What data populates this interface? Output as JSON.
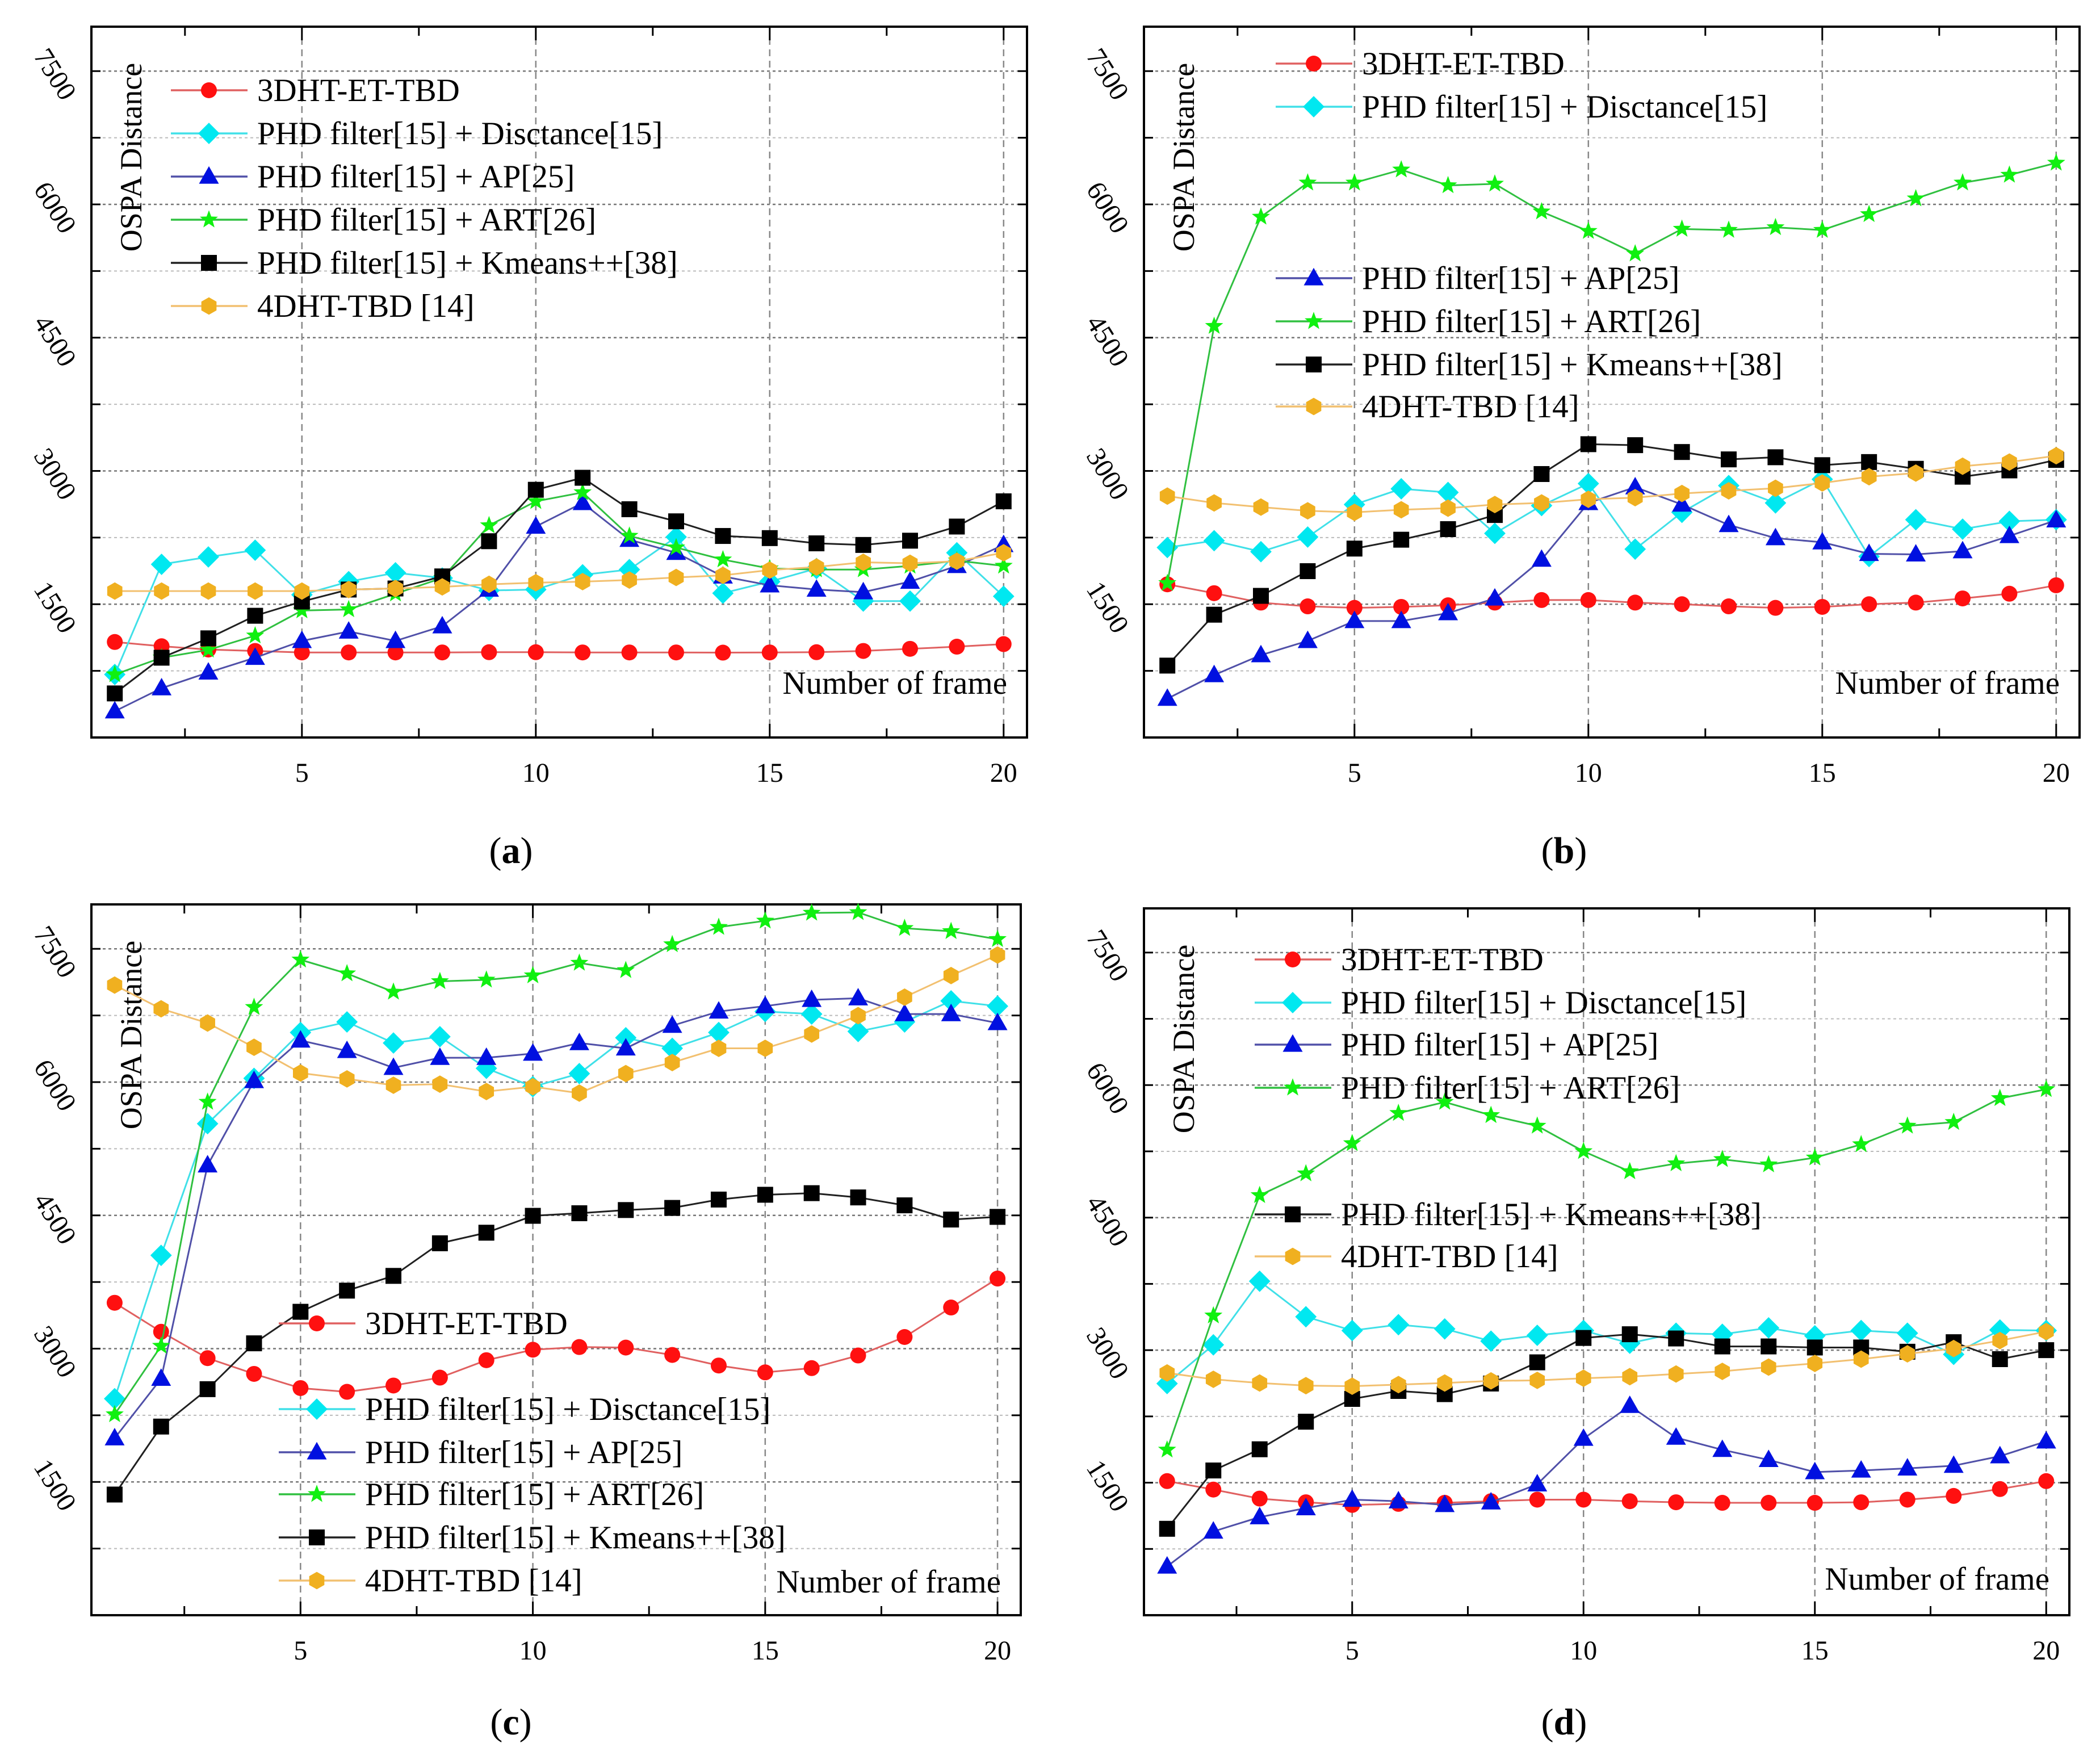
{
  "styles": {
    "3DHT-ET-TBD": {
      "marker": "circle",
      "fill": "#ff1010",
      "line": "#e06060"
    },
    "Disctance": {
      "marker": "diamond",
      "fill": "#00e8f0",
      "line": "#40e0e8"
    },
    "AP": {
      "marker": "triangle",
      "fill": "#0010e0",
      "line": "#5050a8"
    },
    "ART": {
      "marker": "star",
      "fill": "#10f010",
      "line": "#30c040"
    },
    "Kmeans": {
      "marker": "square",
      "fill": "#000000",
      "line": "#202020"
    },
    "4DHT": {
      "marker": "hexagon",
      "fill": "#f0b020",
      "line": "#f2c070"
    }
  },
  "chart_data": [
    {
      "type": "line",
      "caption": "(a)",
      "xlabel": "Number of frame",
      "ylabel": "OSPA Distance",
      "xlim": [
        0.5,
        20.5
      ],
      "ylim": [
        0,
        8000
      ],
      "xticks": [
        5,
        10,
        15,
        20
      ],
      "yticks": [
        1500,
        3000,
        4500,
        6000,
        7500
      ],
      "grid": true,
      "x": [
        1,
        2,
        3,
        4,
        5,
        6,
        7,
        8,
        9,
        10,
        11,
        12,
        13,
        14,
        15,
        16,
        17,
        18,
        19,
        20
      ],
      "legend_layout": "upper",
      "series": [
        {
          "key": "3DHT-ET-TBD",
          "name": "3DHT-ET-TBD",
          "values": [
            1075,
            1027,
            990,
            974,
            957,
            957,
            957,
            957,
            960,
            960,
            957,
            957,
            957,
            955,
            957,
            960,
            974,
            998,
            1022,
            1051
          ]
        },
        {
          "key": "Disctance",
          "name": "PHD filter[15] + Disctance[15]",
          "values": [
            709,
            1949,
            2032,
            2108,
            1606,
            1754,
            1854,
            1795,
            1654,
            1665,
            1831,
            1890,
            2256,
            1624,
            1754,
            1902,
            1535,
            1535,
            2079,
            1589
          ]
        },
        {
          "key": "AP",
          "name": "PHD filter[15] + AP[25]",
          "values": [
            295,
            555,
            732,
            898,
            1087,
            1193,
            1087,
            1252,
            1665,
            2374,
            2640,
            2226,
            2079,
            1813,
            1713,
            1665,
            1636,
            1754,
            1931,
            2167
          ]
        },
        {
          "key": "ART",
          "name": "PHD filter[15] + ART[26]",
          "values": [
            709,
            898,
            986,
            1146,
            1429,
            1441,
            1618,
            1795,
            2386,
            2658,
            2758,
            2268,
            2138,
            2002,
            1902,
            1890,
            1890,
            1931,
            1990,
            1931
          ]
        },
        {
          "key": "Kmeans",
          "name": "PHD filter[15] + Kmeans++[38]",
          "values": [
            496,
            898,
            1116,
            1370,
            1530,
            1665,
            1677,
            1813,
            2209,
            2788,
            2923,
            2569,
            2433,
            2268,
            2244,
            2185,
            2167,
            2215,
            2374,
            2658
          ]
        },
        {
          "key": "4DHT",
          "name": "4DHT-TBD [14]",
          "values": [
            1648,
            1648,
            1648,
            1648,
            1648,
            1665,
            1677,
            1695,
            1724,
            1742,
            1754,
            1772,
            1801,
            1825,
            1884,
            1919,
            1972,
            1961,
            1984,
            2079
          ]
        }
      ]
    },
    {
      "type": "line",
      "caption": "(b)",
      "xlabel": "Number of frame",
      "ylabel": "OSPA Distance",
      "xlim": [
        0.5,
        20.5
      ],
      "ylim": [
        0,
        8000
      ],
      "xticks": [
        5,
        10,
        15,
        20
      ],
      "yticks": [
        1500,
        3000,
        4500,
        6000,
        7500
      ],
      "grid": true,
      "x": [
        1,
        2,
        3,
        4,
        5,
        6,
        7,
        8,
        9,
        10,
        11,
        12,
        13,
        14,
        15,
        16,
        17,
        18,
        19,
        20
      ],
      "legend_layout": "split-top",
      "series": [
        {
          "key": "3DHT-ET-TBD",
          "name": "3DHT-ET-TBD",
          "values": [
            1724,
            1624,
            1518,
            1476,
            1459,
            1470,
            1488,
            1518,
            1547,
            1547,
            1518,
            1500,
            1476,
            1459,
            1470,
            1500,
            1518,
            1565,
            1618,
            1713
          ]
        },
        {
          "key": "Disctance",
          "name": "PHD filter[15] + Disctance[15]",
          "values": [
            2138,
            2215,
            2091,
            2256,
            2622,
            2799,
            2758,
            2297,
            2610,
            2858,
            2120,
            2534,
            2835,
            2640,
            2906,
            2037,
            2451,
            2345,
            2433,
            2451
          ]
        },
        {
          "key": "AP",
          "name": "PHD filter[15] + AP[25]",
          "values": [
            437,
            703,
            927,
            1087,
            1311,
            1311,
            1400,
            1565,
            2002,
            2640,
            2817,
            2622,
            2392,
            2244,
            2197,
            2067,
            2061,
            2097,
            2268,
            2445
          ]
        },
        {
          "key": "ART",
          "name": "PHD filter[15] + ART[26]",
          "values": [
            1736,
            4630,
            5859,
            6243,
            6243,
            6390,
            6213,
            6231,
            5918,
            5699,
            5445,
            5723,
            5711,
            5741,
            5711,
            5888,
            6065,
            6243,
            6331,
            6467
          ]
        },
        {
          "key": "Kmeans",
          "name": "PHD filter[15] + Kmeans++[38]",
          "values": [
            809,
            1382,
            1594,
            1872,
            2126,
            2226,
            2345,
            2504,
            2965,
            3301,
            3290,
            3213,
            3130,
            3154,
            3065,
            3100,
            3024,
            2935,
            3006,
            3124
          ]
        },
        {
          "key": "4DHT",
          "name": "4DHT-TBD [14]",
          "values": [
            2717,
            2640,
            2593,
            2551,
            2534,
            2563,
            2581,
            2622,
            2640,
            2681,
            2699,
            2746,
            2776,
            2805,
            2864,
            2935,
            2976,
            3053,
            3100,
            3171
          ]
        }
      ]
    },
    {
      "type": "line",
      "caption": "(c)",
      "xlabel": "Number of frame",
      "ylabel": "OSPA Distance",
      "xlim": [
        0.5,
        20.5
      ],
      "ylim": [
        0,
        8000
      ],
      "xticks": [
        5,
        10,
        15,
        20
      ],
      "yticks": [
        1500,
        3000,
        4500,
        6000,
        7500
      ],
      "grid": true,
      "x": [
        1,
        2,
        3,
        4,
        5,
        6,
        7,
        8,
        9,
        10,
        11,
        12,
        13,
        14,
        15,
        16,
        17,
        18,
        19,
        20
      ],
      "legend_layout": "lower",
      "series": [
        {
          "key": "3DHT-ET-TBD",
          "name": "3DHT-ET-TBD",
          "values": [
            3516,
            3190,
            2893,
            2716,
            2556,
            2514,
            2585,
            2674,
            2870,
            2988,
            3018,
            3012,
            2929,
            2810,
            2733,
            2781,
            2923,
            3131,
            3463,
            3789
          ]
        },
        {
          "key": "Disctance",
          "name": "PHD filter[15] + Disctance[15]",
          "values": [
            2437,
            4050,
            5532,
            6042,
            6558,
            6677,
            6440,
            6511,
            6155,
            5948,
            6096,
            6499,
            6380,
            6558,
            6795,
            6766,
            6570,
            6677,
            6914,
            6855
          ]
        },
        {
          "key": "AP",
          "name": "PHD filter[15] + AP[25]",
          "values": [
            1992,
            2662,
            5064,
            6013,
            6469,
            6351,
            6161,
            6274,
            6274,
            6321,
            6440,
            6380,
            6635,
            6795,
            6855,
            6926,
            6944,
            6766,
            6766,
            6665
          ]
        },
        {
          "key": "ART",
          "name": "PHD filter[15] + ART[26]",
          "values": [
            2259,
            3030,
            5776,
            6843,
            7377,
            7222,
            7015,
            7134,
            7151,
            7199,
            7341,
            7258,
            7549,
            7744,
            7815,
            7904,
            7910,
            7732,
            7697,
            7608
          ]
        },
        {
          "key": "Kmeans",
          "name": "PHD filter[15] + Kmeans++[38]",
          "values": [
            1358,
            2123,
            2544,
            3060,
            3415,
            3653,
            3819,
            4186,
            4305,
            4495,
            4524,
            4560,
            4584,
            4678,
            4732,
            4750,
            4702,
            4613,
            4453,
            4483
          ]
        },
        {
          "key": "4DHT",
          "name": "4DHT-TBD [14]",
          "values": [
            7092,
            6825,
            6665,
            6392,
            6102,
            6036,
            5965,
            5977,
            5894,
            5948,
            5876,
            6096,
            6220,
            6380,
            6380,
            6541,
            6748,
            6956,
            7199,
            7430
          ]
        }
      ]
    },
    {
      "type": "line",
      "caption": "(d)",
      "xlabel": "Number of frame",
      "ylabel": "OSPA Distance",
      "xlim": [
        0.5,
        20.5
      ],
      "ylim": [
        0,
        8000
      ],
      "xticks": [
        5,
        10,
        15,
        20
      ],
      "yticks": [
        1500,
        3000,
        4500,
        6000,
        7500
      ],
      "grid": true,
      "x": [
        1,
        2,
        3,
        4,
        5,
        6,
        7,
        8,
        9,
        10,
        11,
        12,
        13,
        14,
        15,
        16,
        17,
        18,
        19,
        20
      ],
      "legend_layout": "split-mid",
      "series": [
        {
          "key": "3DHT-ET-TBD",
          "name": "3DHT-ET-TBD",
          "values": [
            1518,
            1422,
            1320,
            1278,
            1248,
            1260,
            1272,
            1290,
            1308,
            1308,
            1290,
            1278,
            1272,
            1272,
            1272,
            1278,
            1308,
            1350,
            1428,
            1518
          ]
        },
        {
          "key": "Disctance",
          "name": "PHD filter[15] + Disctance[15]",
          "values": [
            2622,
            3060,
            3780,
            3378,
            3222,
            3288,
            3240,
            3102,
            3168,
            3222,
            3078,
            3192,
            3180,
            3252,
            3162,
            3222,
            3192,
            2952,
            3228,
            3222
          ]
        },
        {
          "key": "AP",
          "name": "PHD filter[15] + AP[25]",
          "values": [
            552,
            948,
            1110,
            1212,
            1308,
            1290,
            1248,
            1278,
            1482,
            1998,
            2370,
            2010,
            1872,
            1758,
            1620,
            1638,
            1662,
            1692,
            1800,
            1968
          ]
        },
        {
          "key": "ART",
          "name": "PHD filter[15] + ART[26]",
          "values": [
            1872,
            3390,
            4752,
            4998,
            5340,
            5682,
            5808,
            5658,
            5538,
            5250,
            5022,
            5112,
            5160,
            5100,
            5178,
            5328,
            5538,
            5580,
            5850,
            5952
          ]
        },
        {
          "key": "Kmeans",
          "name": "PHD filter[15] + Kmeans++[38]",
          "values": [
            978,
            1638,
            1878,
            2190,
            2448,
            2538,
            2502,
            2622,
            2862,
            3138,
            3180,
            3132,
            3042,
            3042,
            3030,
            3030,
            2982,
            3090,
            2898,
            3000
          ]
        },
        {
          "key": "4DHT",
          "name": "4DHT-TBD [14]",
          "values": [
            2742,
            2670,
            2628,
            2598,
            2592,
            2610,
            2628,
            2652,
            2658,
            2682,
            2700,
            2730,
            2760,
            2808,
            2850,
            2898,
            2958,
            3018,
            3108,
            3210
          ]
        }
      ]
    }
  ]
}
